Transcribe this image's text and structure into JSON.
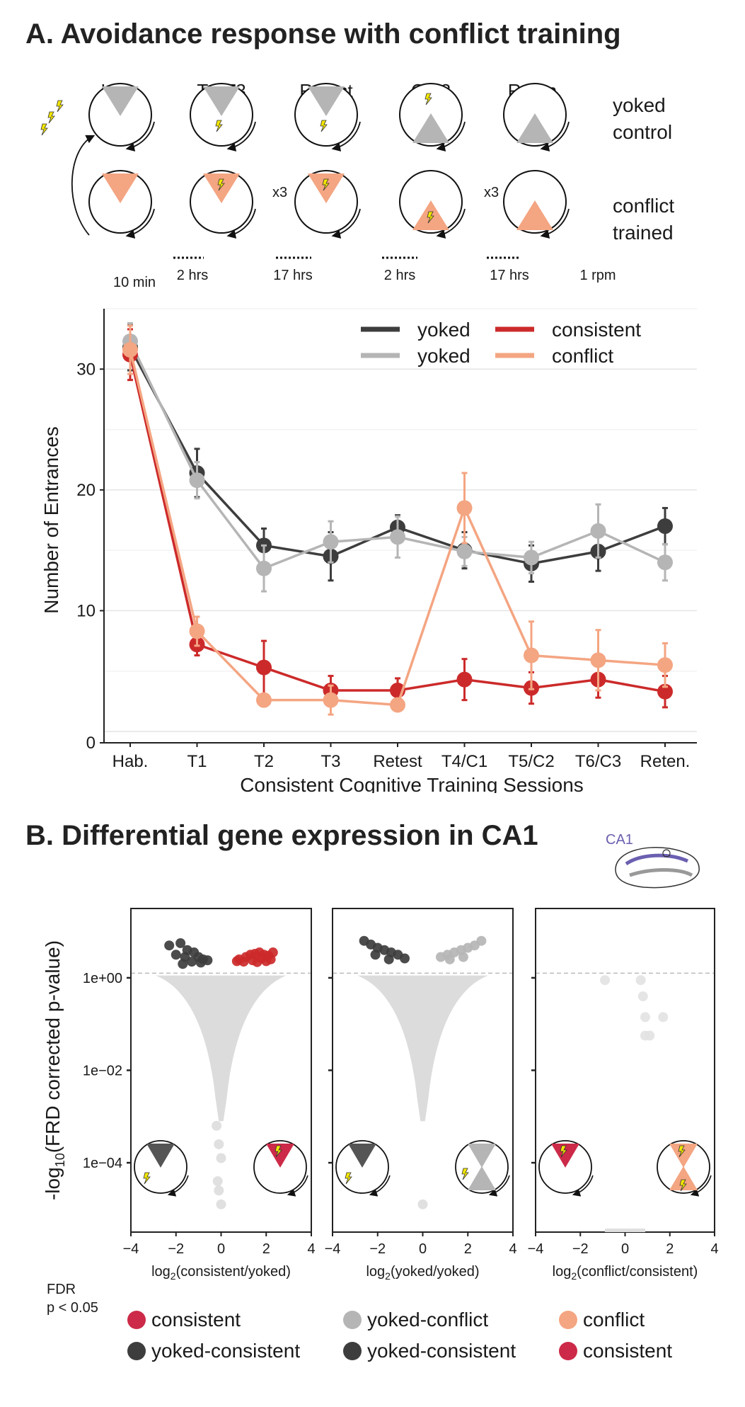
{
  "panel_a": {
    "title": "A. Avoidance response with conflict training",
    "session_labels": [
      "Hab.",
      "T1-T3",
      "Retest",
      "C1-3",
      "Reten."
    ],
    "row_labels": {
      "yoked": [
        "yoked",
        "control"
      ],
      "conflict": [
        "conflict",
        "trained"
      ]
    },
    "repeat_labels": [
      "x3",
      "x3"
    ],
    "durations": [
      "10 min",
      "2 hrs",
      "17 hrs",
      "2 hrs",
      "17 hrs",
      "1 rpm"
    ]
  },
  "panel_b": {
    "title": "B. Differential gene expression in CA1",
    "ca1_label": "CA1",
    "y_axis_label": "-log10(FRD corrected p-value)",
    "y_axis_label_parts": {
      "pre": "-log",
      "sub": "10",
      "post": "(FRD corrected p-value)"
    },
    "y_ticks": [
      "1e+00",
      "1e−02",
      "1e−04"
    ],
    "x_ticks": [
      "−4",
      "−2",
      "0",
      "2",
      "4"
    ],
    "x_labels": [
      {
        "pre": "log",
        "sub": "2",
        "post": "(consistent/yoked)"
      },
      {
        "pre": "log",
        "sub": "2",
        "post": "(yoked/yoked)"
      },
      {
        "pre": "log",
        "sub": "2",
        "post": "(conflict/consistent)"
      }
    ],
    "fdr_note": [
      "FDR",
      "p < 0.05"
    ],
    "legend": [
      {
        "label": "consistent",
        "color": "#cc2a48"
      },
      {
        "label": "yoked-conflict",
        "color": "#b5b5b5"
      },
      {
        "label": "conflict",
        "color": "#f4a582"
      },
      {
        "label": "yoked-consistent",
        "color": "#3d3d3d"
      },
      {
        "label": "yoked-consistent",
        "color": "#3d3d3d"
      },
      {
        "label": "consistent",
        "color": "#cc2a48"
      }
    ]
  },
  "chart_data": [
    {
      "type": "line",
      "xlabel": "Consistent Cognitive Training Sessions",
      "ylabel": "Number of Entrances",
      "categories": [
        "Hab.",
        "T1",
        "T2",
        "T3",
        "Retest",
        "T4/C1",
        "T5/C2",
        "T6/C3",
        "Reten."
      ],
      "ylim": [
        0,
        35
      ],
      "y_ticks": [
        0,
        10,
        20,
        30
      ],
      "grid": true,
      "legend_position": "top-right",
      "series": [
        {
          "name": "yoked",
          "color": "#3d3d3d",
          "values": [
            31.8,
            21.4,
            15.4,
            14.5,
            16.9,
            15.0,
            13.9,
            14.9,
            17.0
          ],
          "errors": [
            1.9,
            2.0,
            1.4,
            2.0,
            1.0,
            1.5,
            1.5,
            1.6,
            1.5
          ]
        },
        {
          "name": "yoked",
          "color": "#b5b5b5",
          "values": [
            32.3,
            20.8,
            13.5,
            15.7,
            16.1,
            14.9,
            14.4,
            16.6,
            14.0
          ],
          "errors": [
            1.5,
            1.5,
            1.9,
            1.7,
            1.7,
            1.2,
            1.3,
            2.2,
            1.5
          ]
        },
        {
          "name": "consistent",
          "color": "#cc2a2a",
          "values": [
            31.2,
            7.2,
            5.3,
            3.4,
            3.4,
            4.3,
            3.6,
            4.3,
            3.3
          ],
          "errors": [
            2.1,
            0.9,
            2.2,
            1.2,
            1.0,
            1.7,
            1.3,
            1.5,
            1.3
          ]
        },
        {
          "name": "conflict",
          "color": "#f4a582",
          "values": [
            31.6,
            8.3,
            2.6,
            2.6,
            2.2,
            18.5,
            6.3,
            5.9,
            5.5
          ],
          "errors": [
            2.0,
            1.2,
            0.5,
            1.2,
            0.5,
            2.9,
            2.8,
            2.5,
            1.8
          ]
        }
      ]
    },
    {
      "type": "scatter",
      "title": "log2(consistent/yoked)",
      "xlim": [
        -4,
        4
      ],
      "ylim_log10p": [
        -5.5,
        1.5
      ],
      "groups": [
        {
          "name": "yoked-consistent",
          "color": "#3d3d3d",
          "points": [
            [
              -2.3,
              0.7
            ],
            [
              -1.8,
              0.75
            ],
            [
              -1.5,
              0.6
            ],
            [
              -1.2,
              0.55
            ],
            [
              -1.0,
              0.45
            ],
            [
              -0.8,
              0.4
            ],
            [
              -1.6,
              0.45
            ],
            [
              -2.0,
              0.5
            ],
            [
              -0.6,
              0.38
            ],
            [
              -1.3,
              0.35
            ],
            [
              -1.7,
              0.3
            ],
            [
              -0.9,
              0.33
            ]
          ]
        },
        {
          "name": "consistent",
          "color": "#cc2a2a",
          "points": [
            [
              0.8,
              0.4
            ],
            [
              1.1,
              0.45
            ],
            [
              1.3,
              0.5
            ],
            [
              1.5,
              0.52
            ],
            [
              1.7,
              0.55
            ],
            [
              1.9,
              0.5
            ],
            [
              2.1,
              0.48
            ],
            [
              2.3,
              0.55
            ],
            [
              1.0,
              0.35
            ],
            [
              1.4,
              0.38
            ],
            [
              1.8,
              0.42
            ],
            [
              2.2,
              0.4
            ],
            [
              0.7,
              0.36
            ],
            [
              1.6,
              0.34
            ],
            [
              2.0,
              0.36
            ]
          ]
        },
        {
          "name": "ns",
          "color": "#dddddd",
          "points": [
            [
              -0.2,
              -3.2
            ],
            [
              -0.1,
              -3.6
            ],
            [
              0.0,
              -3.9
            ],
            [
              -0.15,
              -4.4
            ],
            [
              -0.1,
              -4.6
            ],
            [
              0.0,
              -4.9
            ]
          ]
        }
      ]
    },
    {
      "type": "scatter",
      "title": "log2(yoked/yoked)",
      "xlim": [
        -4,
        4
      ],
      "ylim_log10p": [
        -5.5,
        1.5
      ],
      "groups": [
        {
          "name": "yoked-consistent",
          "color": "#3d3d3d",
          "points": [
            [
              -2.6,
              0.8
            ],
            [
              -2.3,
              0.72
            ],
            [
              -2.0,
              0.65
            ],
            [
              -1.7,
              0.6
            ],
            [
              -1.4,
              0.55
            ],
            [
              -1.1,
              0.5
            ],
            [
              -0.8,
              0.42
            ],
            [
              -1.5,
              0.4
            ],
            [
              -2.1,
              0.5
            ]
          ]
        },
        {
          "name": "yoked-conflict",
          "color": "#b5b5b5",
          "points": [
            [
              0.8,
              0.45
            ],
            [
              1.1,
              0.5
            ],
            [
              1.4,
              0.55
            ],
            [
              1.7,
              0.6
            ],
            [
              2.0,
              0.65
            ],
            [
              2.3,
              0.7
            ],
            [
              2.6,
              0.8
            ],
            [
              1.2,
              0.4
            ],
            [
              1.8,
              0.45
            ]
          ]
        },
        {
          "name": "ns",
          "color": "#dddddd",
          "points": [
            [
              0.0,
              -4.9
            ]
          ]
        }
      ]
    },
    {
      "type": "scatter",
      "title": "log2(conflict/consistent)",
      "xlim": [
        -4,
        4
      ],
      "ylim_log10p": [
        -5.5,
        1.5
      ],
      "groups": [
        {
          "name": "ns",
          "color": "#e3e3e3",
          "points": [
            [
              -0.9,
              -0.05
            ],
            [
              0.7,
              -0.05
            ],
            [
              0.8,
              -0.4
            ],
            [
              0.9,
              -0.85
            ],
            [
              1.7,
              -0.85
            ],
            [
              0.9,
              -1.25
            ],
            [
              1.1,
              -1.25
            ]
          ]
        }
      ]
    }
  ]
}
